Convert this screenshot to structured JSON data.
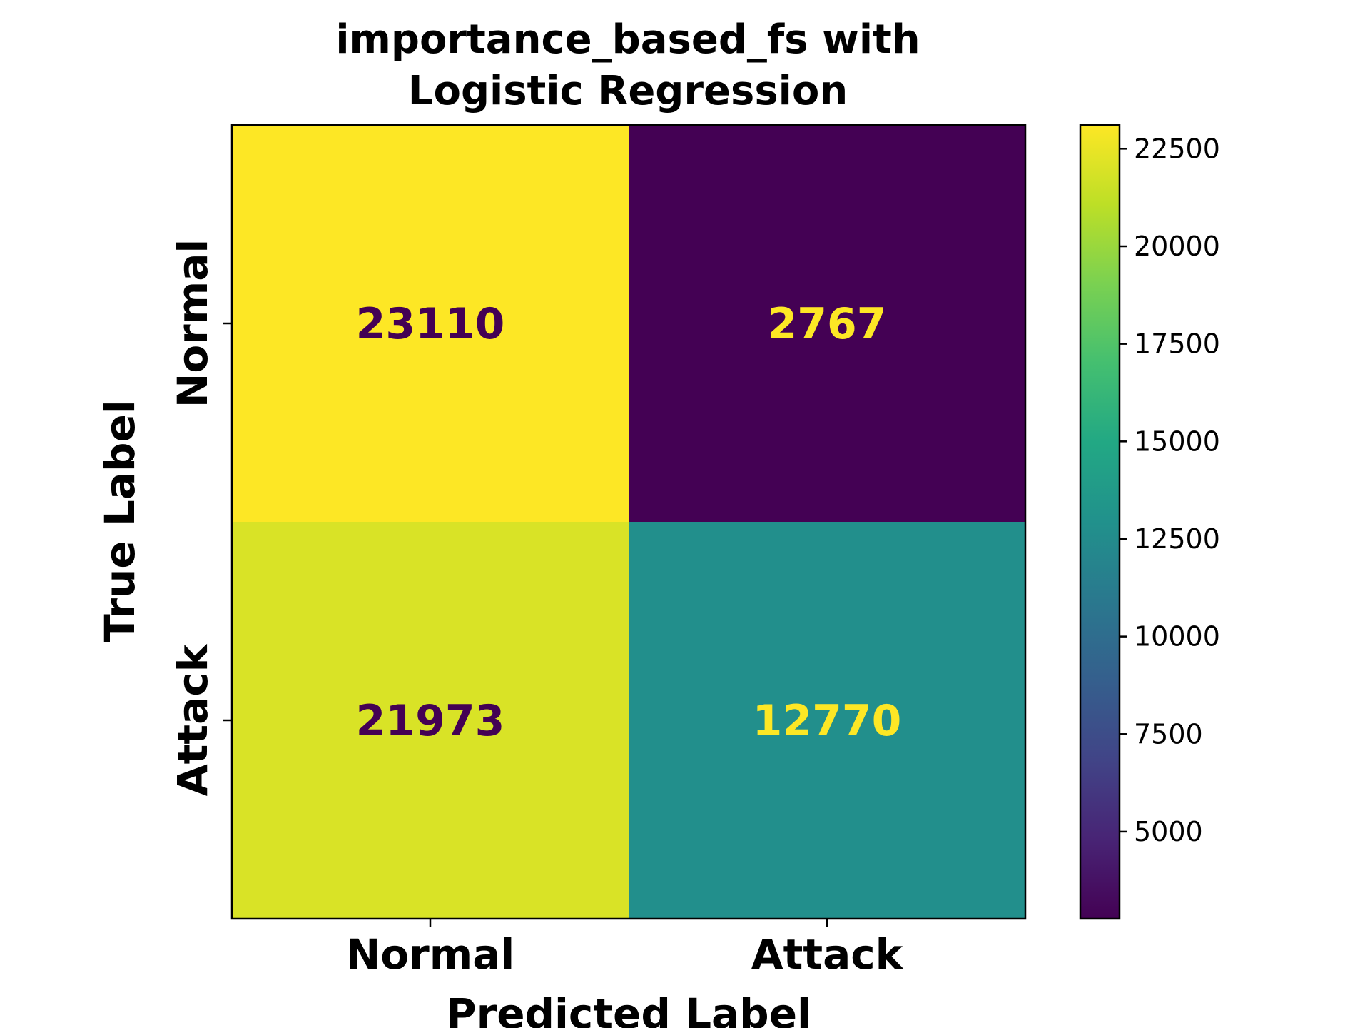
{
  "chart_data": {
    "type": "heatmap",
    "title_lines": [
      "importance_based_fs with",
      "Logistic Regression"
    ],
    "xlabel": "Predicted Label",
    "ylabel": "True Label",
    "x_categories": [
      "Normal",
      "Attack"
    ],
    "y_categories": [
      "Normal",
      "Attack"
    ],
    "values": [
      [
        23110,
        2767
      ],
      [
        21973,
        12770
      ]
    ],
    "colormap": "viridis",
    "color_range": [
      2767,
      23110
    ],
    "colorbar_ticks": [
      5000,
      7500,
      10000,
      12500,
      15000,
      17500,
      20000,
      22500
    ],
    "grid": false
  },
  "colors": {
    "light_text": "#fde725",
    "dark_text": "#440154"
  }
}
